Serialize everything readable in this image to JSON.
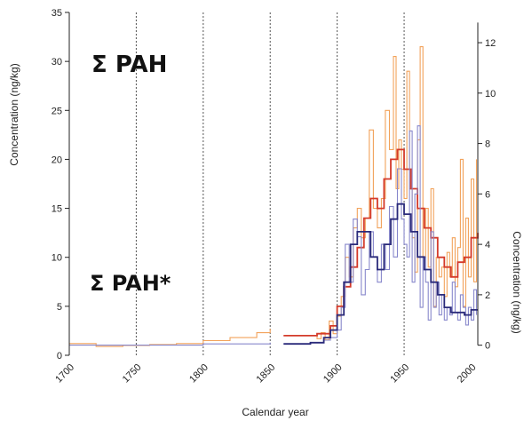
{
  "chart_data": {
    "type": "line",
    "xlabel": "Calendar year",
    "ylabel_left": "Concentration (ng/kg)",
    "ylabel_right": "Concentration (ng/kg)",
    "xlim": [
      1700,
      2005
    ],
    "ylim_left": [
      0,
      35
    ],
    "ylim_right": [
      -0.4,
      13.2
    ],
    "x_ticks": [
      "1700",
      "1750",
      "1800",
      "1850",
      "1900",
      "1950",
      "2000"
    ],
    "y_left_ticks": [
      "0",
      "5",
      "10",
      "15",
      "20",
      "25",
      "30",
      "35"
    ],
    "y_right_ticks": [
      "0",
      "2",
      "4",
      "6",
      "8",
      "10",
      "12"
    ],
    "vertical_reference_years": [
      1750,
      1800,
      1850,
      1900,
      1950
    ],
    "annotations": [
      {
        "text": "Σ PAH",
        "x": 1717,
        "y": 30
      },
      {
        "text": "Σ PAH*",
        "x": 1717,
        "y": 5.8
      }
    ],
    "series": [
      {
        "axis": "left",
        "color": "#f2a25a",
        "style": "step",
        "x": [
          1700,
          1720,
          1740,
          1760,
          1780,
          1800,
          1820,
          1840,
          1850
        ],
        "y": [
          1.2,
          0.9,
          1.0,
          1.1,
          1.2,
          1.5,
          1.8,
          2.3,
          2.7
        ]
      },
      {
        "axis": "left",
        "color": "#f2a25a",
        "style": "step",
        "x": [
          1860,
          1885,
          1888,
          1891,
          1894,
          1897,
          1900,
          1903,
          1906,
          1909,
          1912,
          1915,
          1918,
          1921,
          1924,
          1927,
          1930,
          1933,
          1936,
          1939,
          1942,
          1944,
          1946,
          1948,
          1950,
          1952,
          1954,
          1956,
          1958,
          1960,
          1962,
          1964,
          1966,
          1968,
          1970,
          1972,
          1974,
          1976,
          1978,
          1980,
          1982,
          1984,
          1986,
          1988,
          1990,
          1992,
          1994,
          1996,
          1998,
          2000,
          2002,
          2004
        ],
        "y": [
          2.0,
          1.7,
          2.3,
          1.6,
          3.5,
          2.2,
          4.0,
          6.0,
          10.0,
          8.0,
          13.0,
          15.0,
          12.0,
          14.0,
          23.0,
          15.0,
          13.0,
          16.0,
          25.0,
          21.0,
          30.5,
          17.0,
          22.0,
          19.0,
          16.0,
          29.0,
          17.0,
          12.0,
          8.5,
          22.0,
          31.5,
          10.0,
          15.0,
          9.0,
          17.0,
          5.0,
          10.0,
          8.0,
          9.0,
          6.0,
          10.5,
          8.0,
          12.0,
          7.0,
          11.0,
          20.0,
          5.0,
          14.0,
          8.0,
          18.0,
          7.5,
          20.0
        ]
      },
      {
        "axis": "left",
        "color": "#d43a2a",
        "style": "step",
        "x": [
          1860,
          1885,
          1895,
          1900,
          1905,
          1910,
          1915,
          1920,
          1925,
          1930,
          1935,
          1940,
          1945,
          1950,
          1955,
          1960,
          1965,
          1970,
          1975,
          1980,
          1985,
          1990,
          1995,
          2000,
          2005
        ],
        "y": [
          2.0,
          2.2,
          3.0,
          5.0,
          7.0,
          9.0,
          11.0,
          14.0,
          16.0,
          15.0,
          18.0,
          20.0,
          21.0,
          19.0,
          17.0,
          15.0,
          13.0,
          12.0,
          10.0,
          9.0,
          8.0,
          9.5,
          10.0,
          12.0,
          12.5
        ]
      },
      {
        "axis": "right",
        "color": "#8888cc",
        "style": "step",
        "x": [
          1700,
          1750,
          1800,
          1850
        ],
        "y": [
          0.0,
          0.0,
          0.05,
          0.1
        ]
      },
      {
        "axis": "right",
        "color": "#8888cc",
        "style": "step",
        "x": [
          1860,
          1880,
          1890,
          1895,
          1900,
          1903,
          1906,
          1909,
          1912,
          1915,
          1918,
          1921,
          1924,
          1927,
          1930,
          1933,
          1936,
          1939,
          1942,
          1945,
          1948,
          1950,
          1952,
          1954,
          1956,
          1958,
          1960,
          1962,
          1964,
          1966,
          1968,
          1970,
          1972,
          1974,
          1976,
          1978,
          1980,
          1982,
          1984,
          1986,
          1988,
          1990,
          1992,
          1994,
          1996,
          1998,
          2000,
          2002,
          2004
        ],
        "y": [
          0.05,
          0.1,
          0.2,
          0.3,
          0.6,
          1.5,
          4.0,
          2.5,
          5.0,
          4.3,
          2.0,
          3.0,
          4.5,
          3.5,
          2.5,
          4.0,
          3.0,
          5.5,
          3.5,
          7.0,
          5.0,
          4.0,
          3.5,
          8.5,
          2.5,
          6.0,
          8.7,
          1.5,
          3.5,
          2.5,
          1.0,
          4.5,
          1.5,
          2.5,
          1.2,
          2.0,
          1.0,
          1.5,
          1.2,
          2.5,
          1.3,
          1.0,
          2.0,
          1.5,
          0.8,
          1.5,
          1.0,
          2.2,
          1.2
        ]
      },
      {
        "axis": "right",
        "color": "#2a2a7a",
        "style": "step",
        "x": [
          1860,
          1880,
          1890,
          1895,
          1900,
          1905,
          1910,
          1915,
          1920,
          1925,
          1930,
          1935,
          1940,
          1945,
          1950,
          1955,
          1960,
          1965,
          1970,
          1975,
          1980,
          1985,
          1990,
          1995,
          2000,
          2005
        ],
        "y": [
          0.05,
          0.1,
          0.3,
          0.6,
          1.2,
          2.5,
          4.0,
          4.5,
          4.5,
          3.5,
          3.0,
          4.0,
          5.0,
          5.6,
          5.2,
          4.5,
          3.5,
          3.0,
          2.5,
          2.0,
          1.5,
          1.3,
          1.3,
          1.2,
          1.4,
          1.4
        ]
      }
    ]
  }
}
